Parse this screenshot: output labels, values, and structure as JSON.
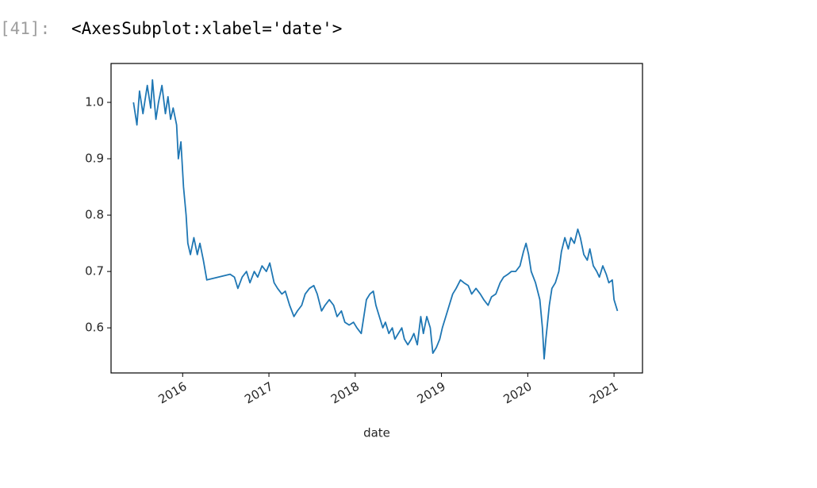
{
  "cell": {
    "prompt": "[41]:",
    "output": "<AxesSubplot:xlabel='date'>"
  },
  "chart_data": {
    "type": "line",
    "xlabel": "date",
    "x": [
      2015.43,
      2015.47,
      2015.5,
      2015.54,
      2015.59,
      2015.63,
      2015.65,
      2015.69,
      2015.72,
      2015.76,
      2015.8,
      2015.83,
      2015.86,
      2015.89,
      2015.93,
      2015.95,
      2015.98,
      2016.01,
      2016.04,
      2016.06,
      2016.09,
      2016.13,
      2016.17,
      2016.2,
      2016.24,
      2016.28,
      2016.55,
      2016.6,
      2016.64,
      2016.69,
      2016.74,
      2016.78,
      2016.83,
      2016.87,
      2016.92,
      2016.97,
      2017.01,
      2017.06,
      2017.1,
      2017.15,
      2017.19,
      2017.24,
      2017.29,
      2017.33,
      2017.38,
      2017.42,
      2017.47,
      2017.52,
      2017.56,
      2017.61,
      2017.65,
      2017.7,
      2017.75,
      2017.79,
      2017.84,
      2017.88,
      2017.93,
      2017.98,
      2018.02,
      2018.07,
      2018.1,
      2018.13,
      2018.17,
      2018.21,
      2018.24,
      2018.28,
      2018.32,
      2018.35,
      2018.39,
      2018.43,
      2018.46,
      2018.5,
      2018.54,
      2018.57,
      2018.61,
      2018.65,
      2018.68,
      2018.72,
      2018.76,
      2018.79,
      2018.83,
      2018.87,
      2018.9,
      2018.94,
      2018.98,
      2019.01,
      2019.05,
      2019.09,
      2019.13,
      2019.17,
      2019.22,
      2019.26,
      2019.31,
      2019.35,
      2019.4,
      2019.45,
      2019.49,
      2019.54,
      2019.58,
      2019.63,
      2019.68,
      2019.72,
      2019.77,
      2019.81,
      2019.86,
      2019.91,
      2019.95,
      2019.98,
      2020.01,
      2020.04,
      2020.09,
      2020.14,
      2020.17,
      2020.19,
      2020.21,
      2020.25,
      2020.28,
      2020.32,
      2020.36,
      2020.39,
      2020.43,
      2020.47,
      2020.5,
      2020.54,
      2020.58,
      2020.61,
      2020.65,
      2020.69,
      2020.72,
      2020.76,
      2020.8,
      2020.83,
      2020.87,
      2020.91,
      2020.94,
      2020.98,
      2021.0,
      2021.04
    ],
    "series": [
      {
        "color": "#1f77b4",
        "values": [
          1.0,
          0.96,
          1.02,
          0.98,
          1.03,
          0.99,
          1.04,
          0.97,
          1.0,
          1.03,
          0.98,
          1.01,
          0.97,
          0.99,
          0.96,
          0.9,
          0.93,
          0.85,
          0.8,
          0.75,
          0.73,
          0.76,
          0.73,
          0.75,
          0.72,
          0.685,
          0.695,
          0.69,
          0.67,
          0.69,
          0.7,
          0.68,
          0.7,
          0.69,
          0.71,
          0.7,
          0.715,
          0.68,
          0.67,
          0.66,
          0.665,
          0.64,
          0.62,
          0.63,
          0.64,
          0.66,
          0.67,
          0.675,
          0.66,
          0.63,
          0.64,
          0.65,
          0.64,
          0.62,
          0.63,
          0.61,
          0.605,
          0.61,
          0.6,
          0.59,
          0.62,
          0.65,
          0.66,
          0.665,
          0.64,
          0.62,
          0.6,
          0.61,
          0.59,
          0.6,
          0.58,
          0.59,
          0.6,
          0.58,
          0.57,
          0.58,
          0.59,
          0.57,
          0.62,
          0.59,
          0.62,
          0.6,
          0.555,
          0.565,
          0.58,
          0.6,
          0.62,
          0.64,
          0.66,
          0.67,
          0.685,
          0.68,
          0.675,
          0.66,
          0.67,
          0.66,
          0.65,
          0.64,
          0.655,
          0.66,
          0.68,
          0.69,
          0.695,
          0.7,
          0.7,
          0.71,
          0.735,
          0.75,
          0.73,
          0.7,
          0.68,
          0.65,
          0.6,
          0.545,
          0.58,
          0.64,
          0.67,
          0.68,
          0.7,
          0.735,
          0.76,
          0.74,
          0.76,
          0.75,
          0.775,
          0.76,
          0.73,
          0.72,
          0.74,
          0.71,
          0.7,
          0.69,
          0.71,
          0.695,
          0.68,
          0.685,
          0.65,
          0.63
        ]
      }
    ],
    "xlim": [
      2015.17,
      2021.33
    ],
    "xticks": [
      2016,
      2017,
      2018,
      2019,
      2020,
      2021
    ],
    "ylim": [
      0.52,
      1.069
    ],
    "yticks": [
      0.6,
      0.7,
      0.8,
      0.9,
      {
        "value": 1,
        "label": "1.0"
      }
    ]
  }
}
